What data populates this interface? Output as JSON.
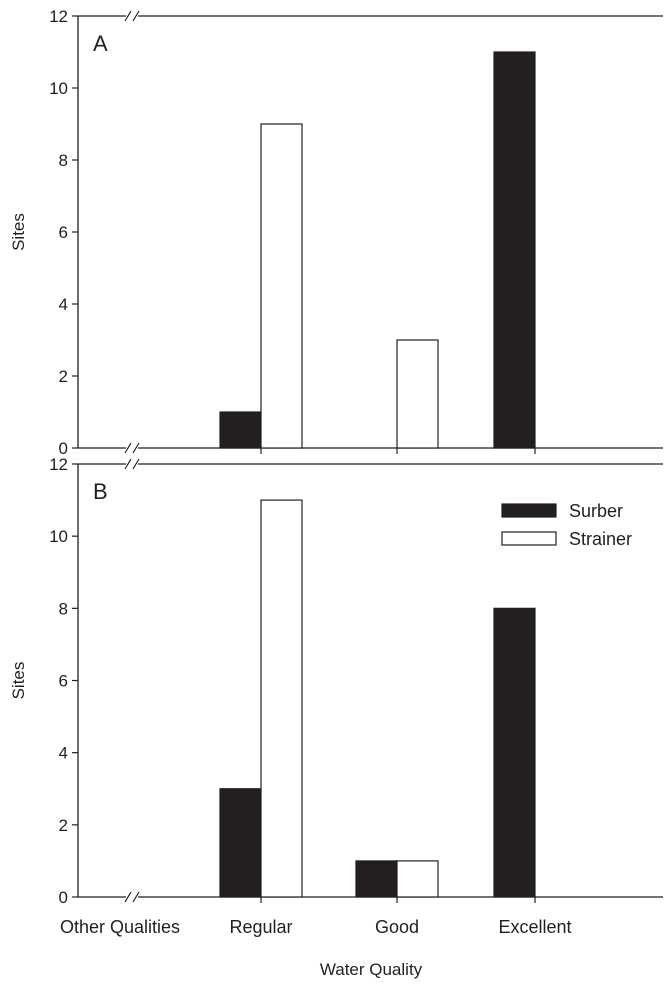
{
  "colors": {
    "surber": "#231f20",
    "strainer": "#ffffff",
    "axis": "#231f20"
  },
  "chart_data": {
    "type": "bar",
    "xlabel": "Water Quality",
    "ylabel": "Sites",
    "categories": [
      "Other Qualities",
      "Regular",
      "Good",
      "Excellent"
    ],
    "ylim": [
      0,
      12
    ],
    "yticks": [
      0,
      2,
      4,
      6,
      8,
      10,
      12
    ],
    "axis_break_marker": "//",
    "legend": {
      "placement": "top-right",
      "panel": "B",
      "entries": [
        "Surber",
        "Strainer"
      ]
    },
    "panels": [
      {
        "label": "A",
        "series": [
          {
            "name": "Surber",
            "values": [
              0,
              1,
              0,
              11
            ]
          },
          {
            "name": "Strainer",
            "values": [
              0,
              9,
              3,
              0
            ]
          }
        ]
      },
      {
        "label": "B",
        "series": [
          {
            "name": "Surber",
            "values": [
              0,
              3,
              1,
              8
            ]
          },
          {
            "name": "Strainer",
            "values": [
              0,
              11,
              1,
              0
            ]
          }
        ]
      }
    ]
  }
}
